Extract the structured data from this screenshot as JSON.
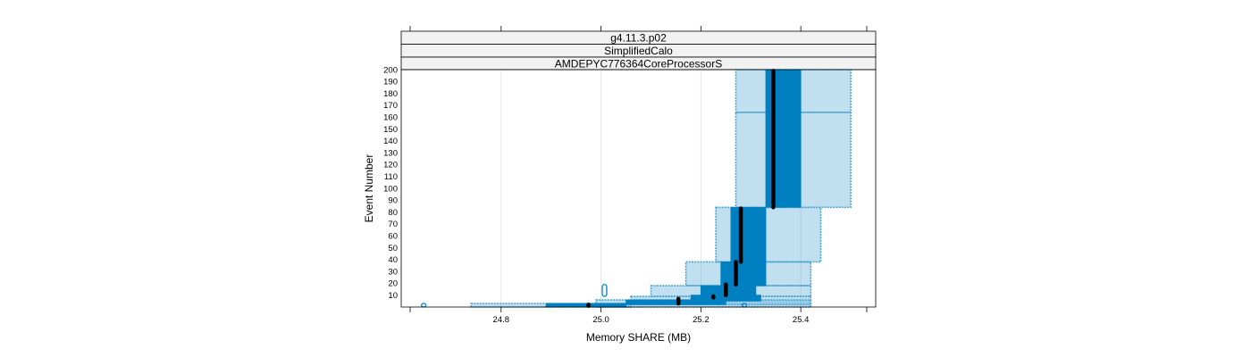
{
  "chart_data": {
    "type": "box-density",
    "strips": [
      "g4.11.3.p02",
      "SimplifiedCalo",
      "AMDEPYC776364CoreProcessorS"
    ],
    "xlabel": "Memory SHARE (MB)",
    "ylabel": "Event Number",
    "xlim": [
      24.6,
      25.55
    ],
    "ylim": [
      0,
      200
    ],
    "x_ticks": [
      24.8,
      25.0,
      25.2,
      25.4
    ],
    "x_tick_labels": [
      "24.8",
      "25.0",
      "25.2",
      "25.4"
    ],
    "y_ticks": [
      10,
      20,
      30,
      40,
      50,
      60,
      70,
      80,
      90,
      100,
      110,
      120,
      130,
      140,
      150,
      160,
      170,
      180,
      190,
      200
    ],
    "y_tick_labels": [
      "10",
      "20",
      "30",
      "40",
      "50",
      "60",
      "70",
      "80",
      "90",
      "100",
      "110",
      "120",
      "130",
      "140",
      "150",
      "160",
      "170",
      "180",
      "190",
      "200"
    ],
    "outer_bands": [
      {
        "y0": 0,
        "y1": 3,
        "x0": 24.74,
        "x1": 25.06
      },
      {
        "y0": 0,
        "y1": 6,
        "x0": 24.99,
        "x1": 25.42
      },
      {
        "y0": 2,
        "y1": 9,
        "x0": 25.06,
        "x1": 25.42
      },
      {
        "y0": 9,
        "y1": 18,
        "x0": 25.1,
        "x1": 25.42
      },
      {
        "y0": 18,
        "y1": 38,
        "x0": 25.17,
        "x1": 25.42
      },
      {
        "y0": 38,
        "y1": 84,
        "x0": 25.23,
        "x1": 25.44
      },
      {
        "y0": 84,
        "y1": 164,
        "x0": 25.27,
        "x1": 25.5
      },
      {
        "y0": 164,
        "y1": 200,
        "x0": 25.27,
        "x1": 25.5
      }
    ],
    "inner_bands": [
      {
        "y0": 0,
        "y1": 3,
        "x0": 24.89,
        "x1": 25.05
      },
      {
        "y0": 2,
        "y1": 6,
        "x0": 25.05,
        "x1": 25.25
      },
      {
        "y0": 5,
        "y1": 10,
        "x0": 25.18,
        "x1": 25.32
      },
      {
        "y0": 10,
        "y1": 18,
        "x0": 25.2,
        "x1": 25.31
      },
      {
        "y0": 18,
        "y1": 38,
        "x0": 25.24,
        "x1": 25.33
      },
      {
        "y0": 38,
        "y1": 84,
        "x0": 25.26,
        "x1": 25.33
      },
      {
        "y0": 84,
        "y1": 200,
        "x0": 25.33,
        "x1": 25.4
      }
    ],
    "medians": [
      {
        "x": 24.975,
        "y0": 1,
        "y1": 2
      },
      {
        "x": 25.155,
        "y0": 3,
        "y1": 7
      },
      {
        "x": 25.225,
        "y0": 8,
        "y1": 9
      },
      {
        "x": 25.25,
        "y0": 10,
        "y1": 19
      },
      {
        "x": 25.27,
        "y0": 19,
        "y1": 38
      },
      {
        "x": 25.28,
        "y0": 38,
        "y1": 83
      },
      {
        "x": 25.345,
        "y0": 84,
        "y1": 199
      }
    ],
    "outliers": [
      {
        "x": 24.645,
        "y0": 1,
        "y1": 3
      },
      {
        "x": 25.007,
        "y0": 9,
        "y1": 19
      },
      {
        "x": 25.287,
        "y0": 0,
        "y1": 3
      }
    ],
    "colors": {
      "fill": "#0080c0",
      "dash": "#4aa3d0",
      "median": "#000000",
      "strip_bg": "#f2f2f2",
      "grid": "#e6e6e6"
    }
  }
}
